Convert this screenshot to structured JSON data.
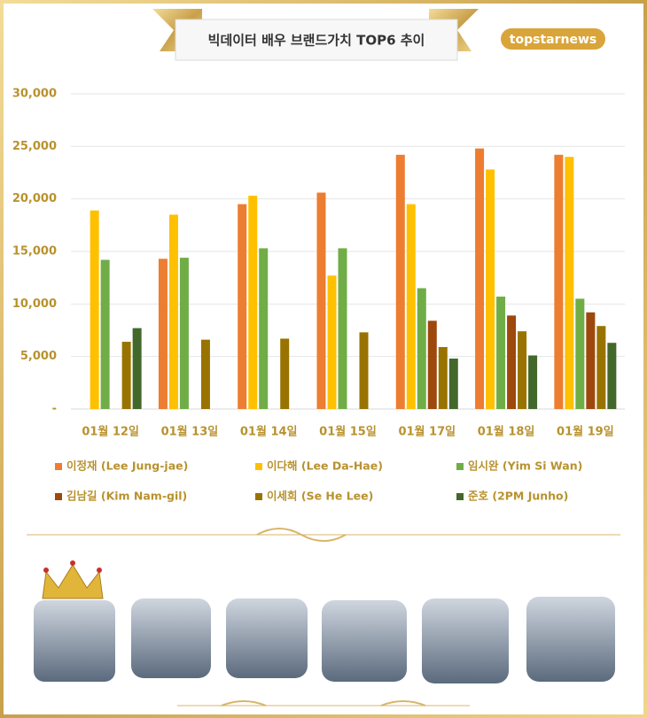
{
  "logo": "topstarnews",
  "chart_data": {
    "type": "bar",
    "title": "빅데이터 배우 브랜드가치 TOP6 추이",
    "categories": [
      "01월 12일",
      "01월 13일",
      "01월 14일",
      "01월 15일",
      "01월 17일",
      "01월 18일",
      "01월 19일"
    ],
    "series": [
      {
        "name": "이정재 (Lee Jung-jae)",
        "color": "#ed7d31",
        "values": [
          null,
          14300,
          19500,
          20600,
          24200,
          24800,
          24200
        ]
      },
      {
        "name": "이다해 (Lee Da-Hae)",
        "color": "#ffc000",
        "values": [
          18900,
          18500,
          20300,
          12700,
          19500,
          22800,
          24000
        ]
      },
      {
        "name": "임시완 (Yim Si Wan)",
        "color": "#70ad47",
        "values": [
          14200,
          14400,
          15300,
          15300,
          11500,
          10700,
          10500
        ]
      },
      {
        "name": "김남길 (Kim Nam-gil)",
        "color": "#9e480e",
        "values": [
          null,
          null,
          null,
          null,
          8400,
          8900,
          9200
        ]
      },
      {
        "name": "이세희 (Se He Lee)",
        "color": "#997300",
        "values": [
          6400,
          6600,
          6700,
          7300,
          5900,
          7400,
          7900
        ]
      },
      {
        "name": "준호 (2PM Junho)",
        "color": "#43682b",
        "values": [
          7700,
          null,
          null,
          null,
          4800,
          5100,
          6300
        ]
      }
    ],
    "ylim": [
      0,
      30000
    ],
    "yticks": [
      {
        "value": 0,
        "label": "-"
      },
      {
        "value": 5000,
        "label": "5,000"
      },
      {
        "value": 10000,
        "label": "10,000"
      },
      {
        "value": 15000,
        "label": "15,000"
      },
      {
        "value": 20000,
        "label": "20,000"
      },
      {
        "value": 25000,
        "label": "25,000"
      },
      {
        "value": 30000,
        "label": "30,000"
      }
    ],
    "grid": true
  }
}
